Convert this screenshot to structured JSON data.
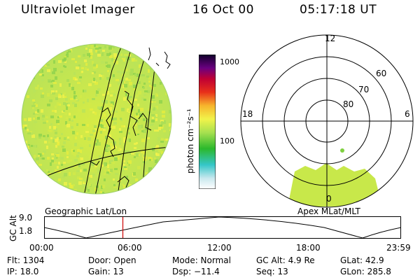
{
  "header": {
    "instrument": "Ultraviolet Imager",
    "date": "16 Oct 00",
    "time": "05:17:18 UT"
  },
  "colorbar": {
    "unit_label": "photon cm⁻²s⁻¹",
    "ticks": [
      "1000",
      "100"
    ]
  },
  "polar": {
    "clock_labels": [
      "12",
      "18",
      "6",
      "0"
    ],
    "lat_labels": [
      "60",
      "70",
      "80"
    ]
  },
  "projection_labels": {
    "geographic": "Geographic Lat/Lon",
    "apex": "Apex MLat/MLT"
  },
  "altitude_plot": {
    "axis_title": "GC Alt",
    "y_ticks": [
      "9.0",
      "1.8"
    ],
    "x_ticks": [
      "00:00",
      "06:00",
      "12:00",
      "18:00",
      "23:59"
    ],
    "current_time_fraction": 0.22
  },
  "status": {
    "flt": "Flt: 1304",
    "ip": "IP: 18.0",
    "door": "Door: Open",
    "gain": "Gain: 13",
    "mode": "Mode: Normal",
    "dsp": "Dsp:  −11.4",
    "gc_alt": "GC Alt: 4.9 Re",
    "seq": "Seq: 13",
    "glat": "GLat:  42.9",
    "glon": "GLon: 285.8"
  },
  "colors": {
    "background": "#ffffff",
    "image_fill": "#c8e84a",
    "alt_marker": "#d01010"
  }
}
